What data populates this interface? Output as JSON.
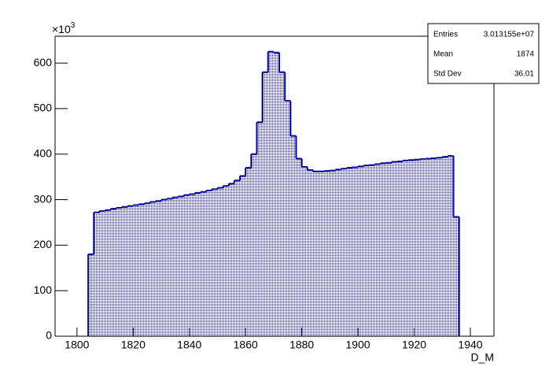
{
  "chart_data": {
    "type": "histogram",
    "xlabel": "D_M",
    "y_multiplier": {
      "base": "×10",
      "exponent": "3"
    },
    "color": "#000099",
    "bins": [
      1804,
      1806,
      1808,
      1810,
      1812,
      1814,
      1816,
      1818,
      1820,
      1822,
      1824,
      1826,
      1828,
      1830,
      1832,
      1834,
      1836,
      1838,
      1840,
      1842,
      1844,
      1846,
      1848,
      1850,
      1852,
      1854,
      1856,
      1858,
      1860,
      1862,
      1864,
      1866,
      1868,
      1870,
      1872,
      1874,
      1876,
      1878,
      1880,
      1882,
      1884,
      1886,
      1888,
      1890,
      1892,
      1894,
      1896,
      1898,
      1900,
      1902,
      1904,
      1906,
      1908,
      1910,
      1912,
      1914,
      1916,
      1918,
      1920,
      1922,
      1924,
      1926,
      1928,
      1930,
      1932,
      1934,
      1936
    ],
    "values": [
      180,
      272,
      275,
      277,
      280,
      282,
      284,
      286,
      288,
      290,
      292,
      295,
      297,
      300,
      302,
      305,
      307,
      310,
      312,
      315,
      317,
      320,
      323,
      326,
      330,
      335,
      342,
      352,
      370,
      400,
      470,
      580,
      625,
      623,
      580,
      517,
      440,
      390,
      372,
      365,
      362,
      362,
      363,
      364,
      366,
      368,
      370,
      371,
      373,
      375,
      376,
      378,
      380,
      381,
      383,
      384,
      386,
      387,
      388,
      389,
      390,
      391,
      392,
      394,
      396,
      262
    ],
    "xlim": [
      1792.2,
      1948.4
    ],
    "xticks": [
      1800,
      1820,
      1840,
      1860,
      1880,
      1900,
      1920,
      1940
    ],
    "ylim": [
      0,
      659
    ],
    "yticks": [
      0,
      100,
      200,
      300,
      400,
      500,
      600
    ],
    "stats": [
      {
        "label": "Entries",
        "value": "3.013155e+07"
      },
      {
        "label": "Mean",
        "value": "1874"
      },
      {
        "label": "Std Dev",
        "value": "36.01"
      }
    ]
  }
}
